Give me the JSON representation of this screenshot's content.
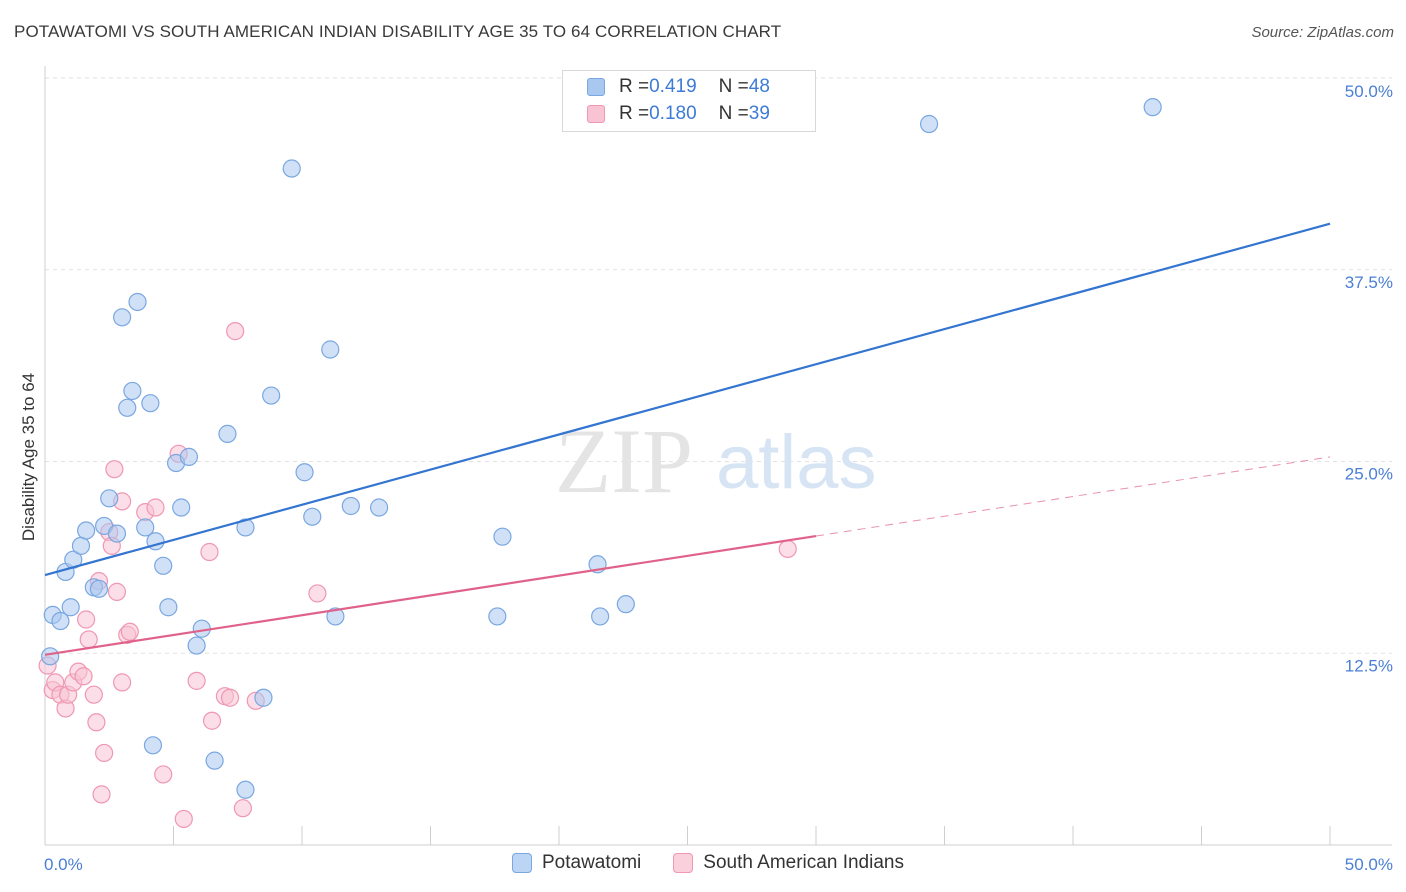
{
  "title": "POTAWATOMI VS SOUTH AMERICAN INDIAN DISABILITY AGE 35 TO 64 CORRELATION CHART",
  "source": "Source: ZipAtlas.com",
  "watermark": {
    "zip": "ZIP",
    "atlas": "atlas"
  },
  "legend": {
    "rows": [
      {
        "r_label": "R = ",
        "r_value": "0.419",
        "n_label": "N = ",
        "n_value": "48",
        "color": "#a9c8f0",
        "border": "#7aa7e0"
      },
      {
        "r_label": "R = ",
        "r_value": "0.180",
        "n_label": "N = ",
        "n_value": "39",
        "color": "#f8c3d3",
        "border": "#ef97b3"
      }
    ]
  },
  "bottom_legend": [
    {
      "label": "Potawatomi",
      "color": "#bcd5f4",
      "border": "#7aa7e0"
    },
    {
      "label": "South American Indians",
      "color": "#fad0dd",
      "border": "#ef97b3"
    }
  ],
  "chart_data": {
    "type": "scatter",
    "title": "POTAWATOMI VS SOUTH AMERICAN INDIAN DISABILITY AGE 35 TO 64 CORRELATION CHART",
    "xlabel": "",
    "ylabel": "Disability Age 35 to 64",
    "xlim": [
      0,
      50
    ],
    "ylim": [
      0,
      50
    ],
    "x_tick_labels": [
      {
        "value": 0,
        "label": "0.0%"
      },
      {
        "value": 50,
        "label": "50.0%"
      }
    ],
    "y_tick_labels": [
      {
        "value": 12.5,
        "label": "12.5%"
      },
      {
        "value": 25,
        "label": "25.0%"
      },
      {
        "value": 37.5,
        "label": "37.5%"
      },
      {
        "value": 50,
        "label": "50.0%"
      }
    ],
    "grid": "horizontal dashed",
    "series": [
      {
        "name": "Potawatomi",
        "color": "#a9c8f0",
        "stroke": "#7aa7e0",
        "line_color": "#3375d0",
        "trend": {
          "x0": 0,
          "y0": 17.6,
          "x1": 50,
          "y1": 40.5,
          "dashed_from": null
        },
        "points": [
          [
            0.2,
            12.3
          ],
          [
            0.3,
            15.0
          ],
          [
            0.6,
            14.6
          ],
          [
            0.8,
            17.8
          ],
          [
            1.0,
            15.5
          ],
          [
            1.1,
            18.6
          ],
          [
            1.4,
            19.5
          ],
          [
            1.6,
            20.5
          ],
          [
            1.9,
            16.8
          ],
          [
            2.1,
            16.7
          ],
          [
            2.3,
            20.8
          ],
          [
            2.5,
            22.6
          ],
          [
            2.8,
            20.3
          ],
          [
            3.0,
            34.4
          ],
          [
            3.2,
            28.5
          ],
          [
            3.4,
            29.6
          ],
          [
            3.6,
            35.4
          ],
          [
            3.9,
            20.7
          ],
          [
            4.1,
            28.8
          ],
          [
            4.3,
            19.8
          ],
          [
            4.6,
            18.2
          ],
          [
            4.8,
            15.5
          ],
          [
            5.1,
            24.9
          ],
          [
            5.3,
            22.0
          ],
          [
            5.6,
            25.3
          ],
          [
            5.9,
            13.0
          ],
          [
            6.1,
            14.1
          ],
          [
            7.1,
            26.8
          ],
          [
            7.8,
            20.7
          ],
          [
            8.5,
            9.6
          ],
          [
            8.8,
            29.3
          ],
          [
            9.6,
            44.1
          ],
          [
            10.1,
            24.3
          ],
          [
            10.4,
            21.4
          ],
          [
            11.1,
            32.3
          ],
          [
            11.3,
            14.9
          ],
          [
            11.9,
            22.1
          ],
          [
            13.0,
            22.0
          ],
          [
            17.8,
            20.1
          ],
          [
            17.6,
            14.9
          ],
          [
            21.5,
            18.3
          ],
          [
            21.6,
            14.9
          ],
          [
            22.6,
            15.7
          ],
          [
            34.4,
            47.0
          ],
          [
            43.1,
            48.1
          ],
          [
            4.2,
            6.5
          ],
          [
            6.6,
            5.5
          ],
          [
            7.8,
            3.6
          ]
        ]
      },
      {
        "name": "South American Indians",
        "color": "#f8c3d3",
        "stroke": "#ef97b3",
        "line_color": "#e0628a",
        "trend": {
          "x0": 0,
          "y0": 12.4,
          "x1": 50,
          "y1": 25.3,
          "solid_until": 30
        },
        "points": [
          [
            0.1,
            11.7
          ],
          [
            0.3,
            10.1
          ],
          [
            0.4,
            10.6
          ],
          [
            0.6,
            9.8
          ],
          [
            0.8,
            8.9
          ],
          [
            0.9,
            9.8
          ],
          [
            1.1,
            10.6
          ],
          [
            1.3,
            11.3
          ],
          [
            1.5,
            11.0
          ],
          [
            1.6,
            14.7
          ],
          [
            1.7,
            13.4
          ],
          [
            1.9,
            9.8
          ],
          [
            2.0,
            8.0
          ],
          [
            2.1,
            17.2
          ],
          [
            2.2,
            3.3
          ],
          [
            2.3,
            6.0
          ],
          [
            2.5,
            20.4
          ],
          [
            2.6,
            19.5
          ],
          [
            2.7,
            24.5
          ],
          [
            2.8,
            16.5
          ],
          [
            3.0,
            22.4
          ],
          [
            3.0,
            10.6
          ],
          [
            3.2,
            13.7
          ],
          [
            3.3,
            13.9
          ],
          [
            3.9,
            21.7
          ],
          [
            4.3,
            22.0
          ],
          [
            4.6,
            4.6
          ],
          [
            5.2,
            25.5
          ],
          [
            5.4,
            1.7
          ],
          [
            5.9,
            10.7
          ],
          [
            6.4,
            19.1
          ],
          [
            6.5,
            8.1
          ],
          [
            7.0,
            9.7
          ],
          [
            7.2,
            9.6
          ],
          [
            7.4,
            33.5
          ],
          [
            7.7,
            2.4
          ],
          [
            8.2,
            9.4
          ],
          [
            10.6,
            16.4
          ],
          [
            28.9,
            19.3
          ]
        ]
      }
    ]
  }
}
